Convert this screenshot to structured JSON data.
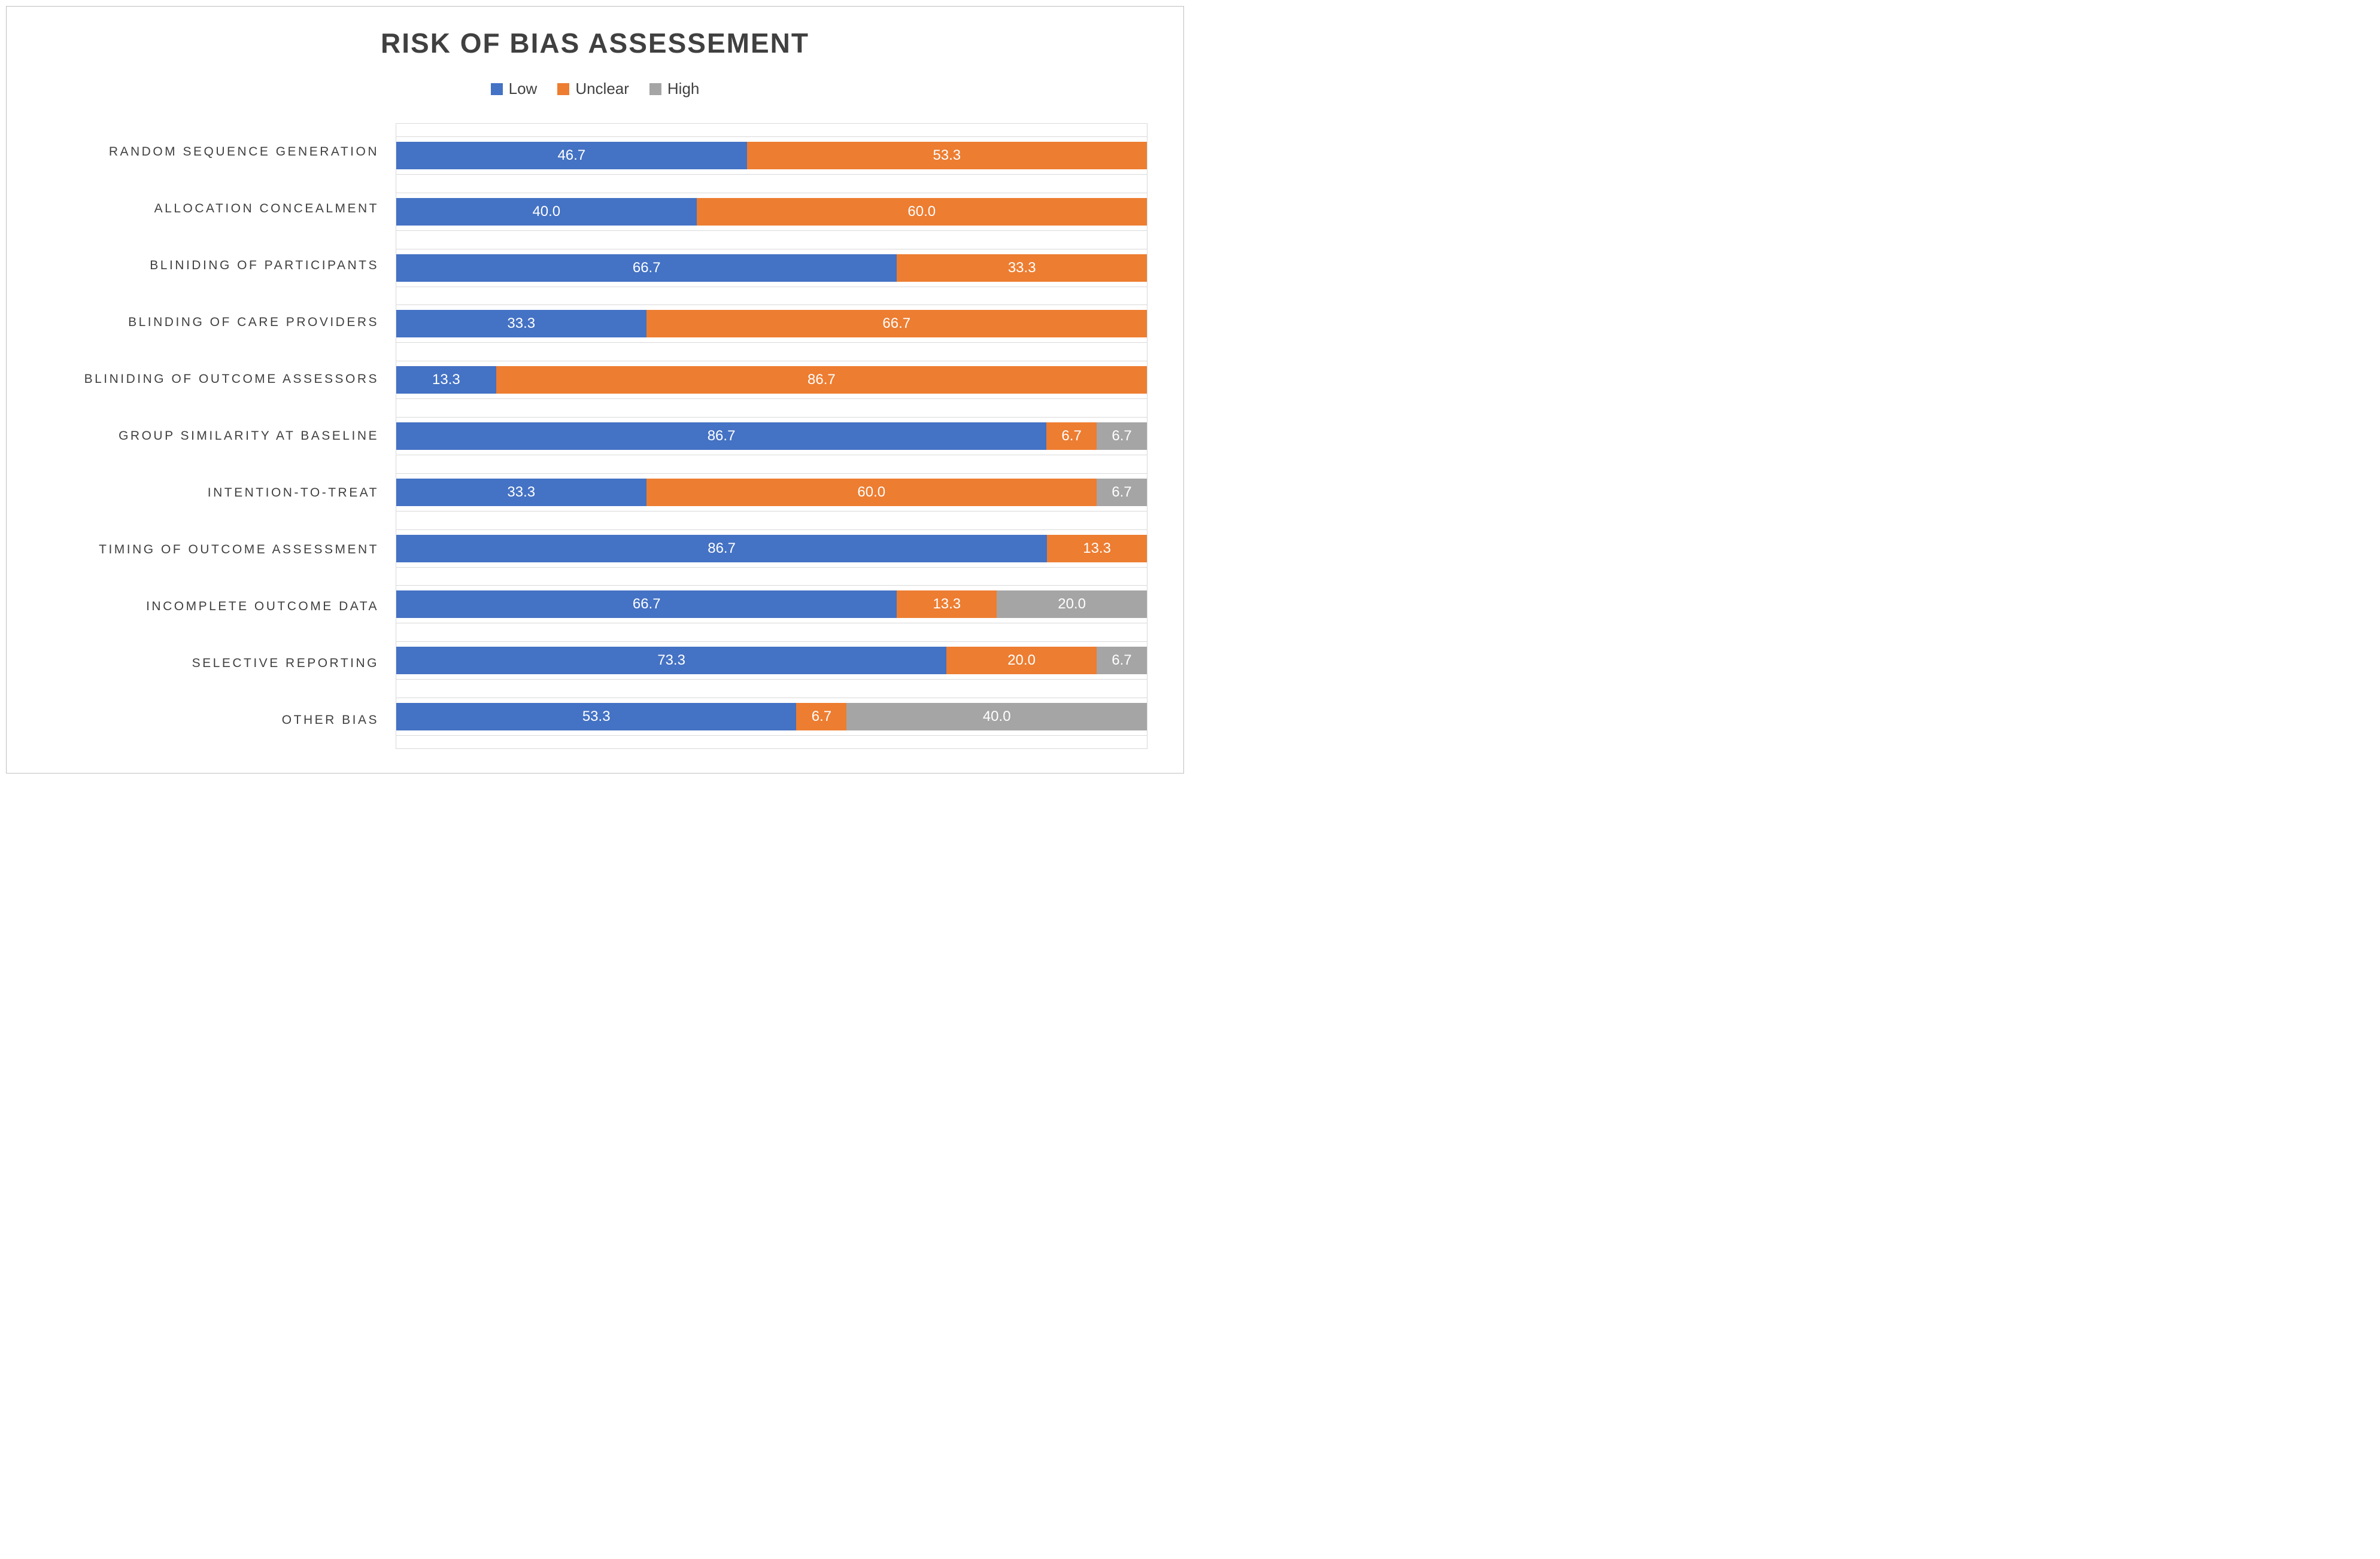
{
  "title": "RISK OF BIAS ASSESSEMENT",
  "legend": [
    {
      "label": "Low",
      "color": "#4472C4"
    },
    {
      "label": "Unclear",
      "color": "#ED7D31"
    },
    {
      "label": "High",
      "color": "#A5A5A5"
    }
  ],
  "colors": {
    "low": "#4472C4",
    "unclear": "#ED7D31",
    "high": "#A5A5A5",
    "title_text": "#404040",
    "axis_border": "#D9D9D9"
  },
  "chart_data": {
    "type": "bar",
    "orientation": "horizontal",
    "stacked": true,
    "title": "RISK OF BIAS ASSESSEMENT",
    "xlabel": "",
    "ylabel": "",
    "xlim": [
      0,
      100
    ],
    "legend_position": "top",
    "grid": false,
    "value_labels": "inside-white-one-decimal",
    "categories": [
      "RANDOM SEQUENCE GENERATION",
      "ALLOCATION CONCEALMENT",
      "BLINIDING OF PARTICIPANTS",
      "BLINDING OF CARE PROVIDERS",
      "BLINIDING OF OUTCOME ASSESSORS",
      "GROUP SIMILARITY AT BASELINE",
      "INTENTION-TO-TREAT",
      "TIMING OF OUTCOME ASSESSMENT",
      "INCOMPLETE OUTCOME DATA",
      "SELECTIVE REPORTING",
      "OTHER BIAS"
    ],
    "series": [
      {
        "name": "Low",
        "color": "#4472C4",
        "values": [
          46.7,
          40.0,
          66.7,
          33.3,
          13.3,
          86.7,
          33.3,
          86.7,
          66.7,
          73.3,
          53.3
        ]
      },
      {
        "name": "Unclear",
        "color": "#ED7D31",
        "values": [
          53.3,
          60.0,
          33.3,
          66.7,
          86.7,
          6.7,
          60.0,
          13.3,
          13.3,
          20.0,
          6.7
        ]
      },
      {
        "name": "High",
        "color": "#A5A5A5",
        "values": [
          0,
          0,
          0,
          0,
          0,
          6.7,
          6.7,
          0,
          20.0,
          6.7,
          40.0
        ]
      }
    ]
  }
}
